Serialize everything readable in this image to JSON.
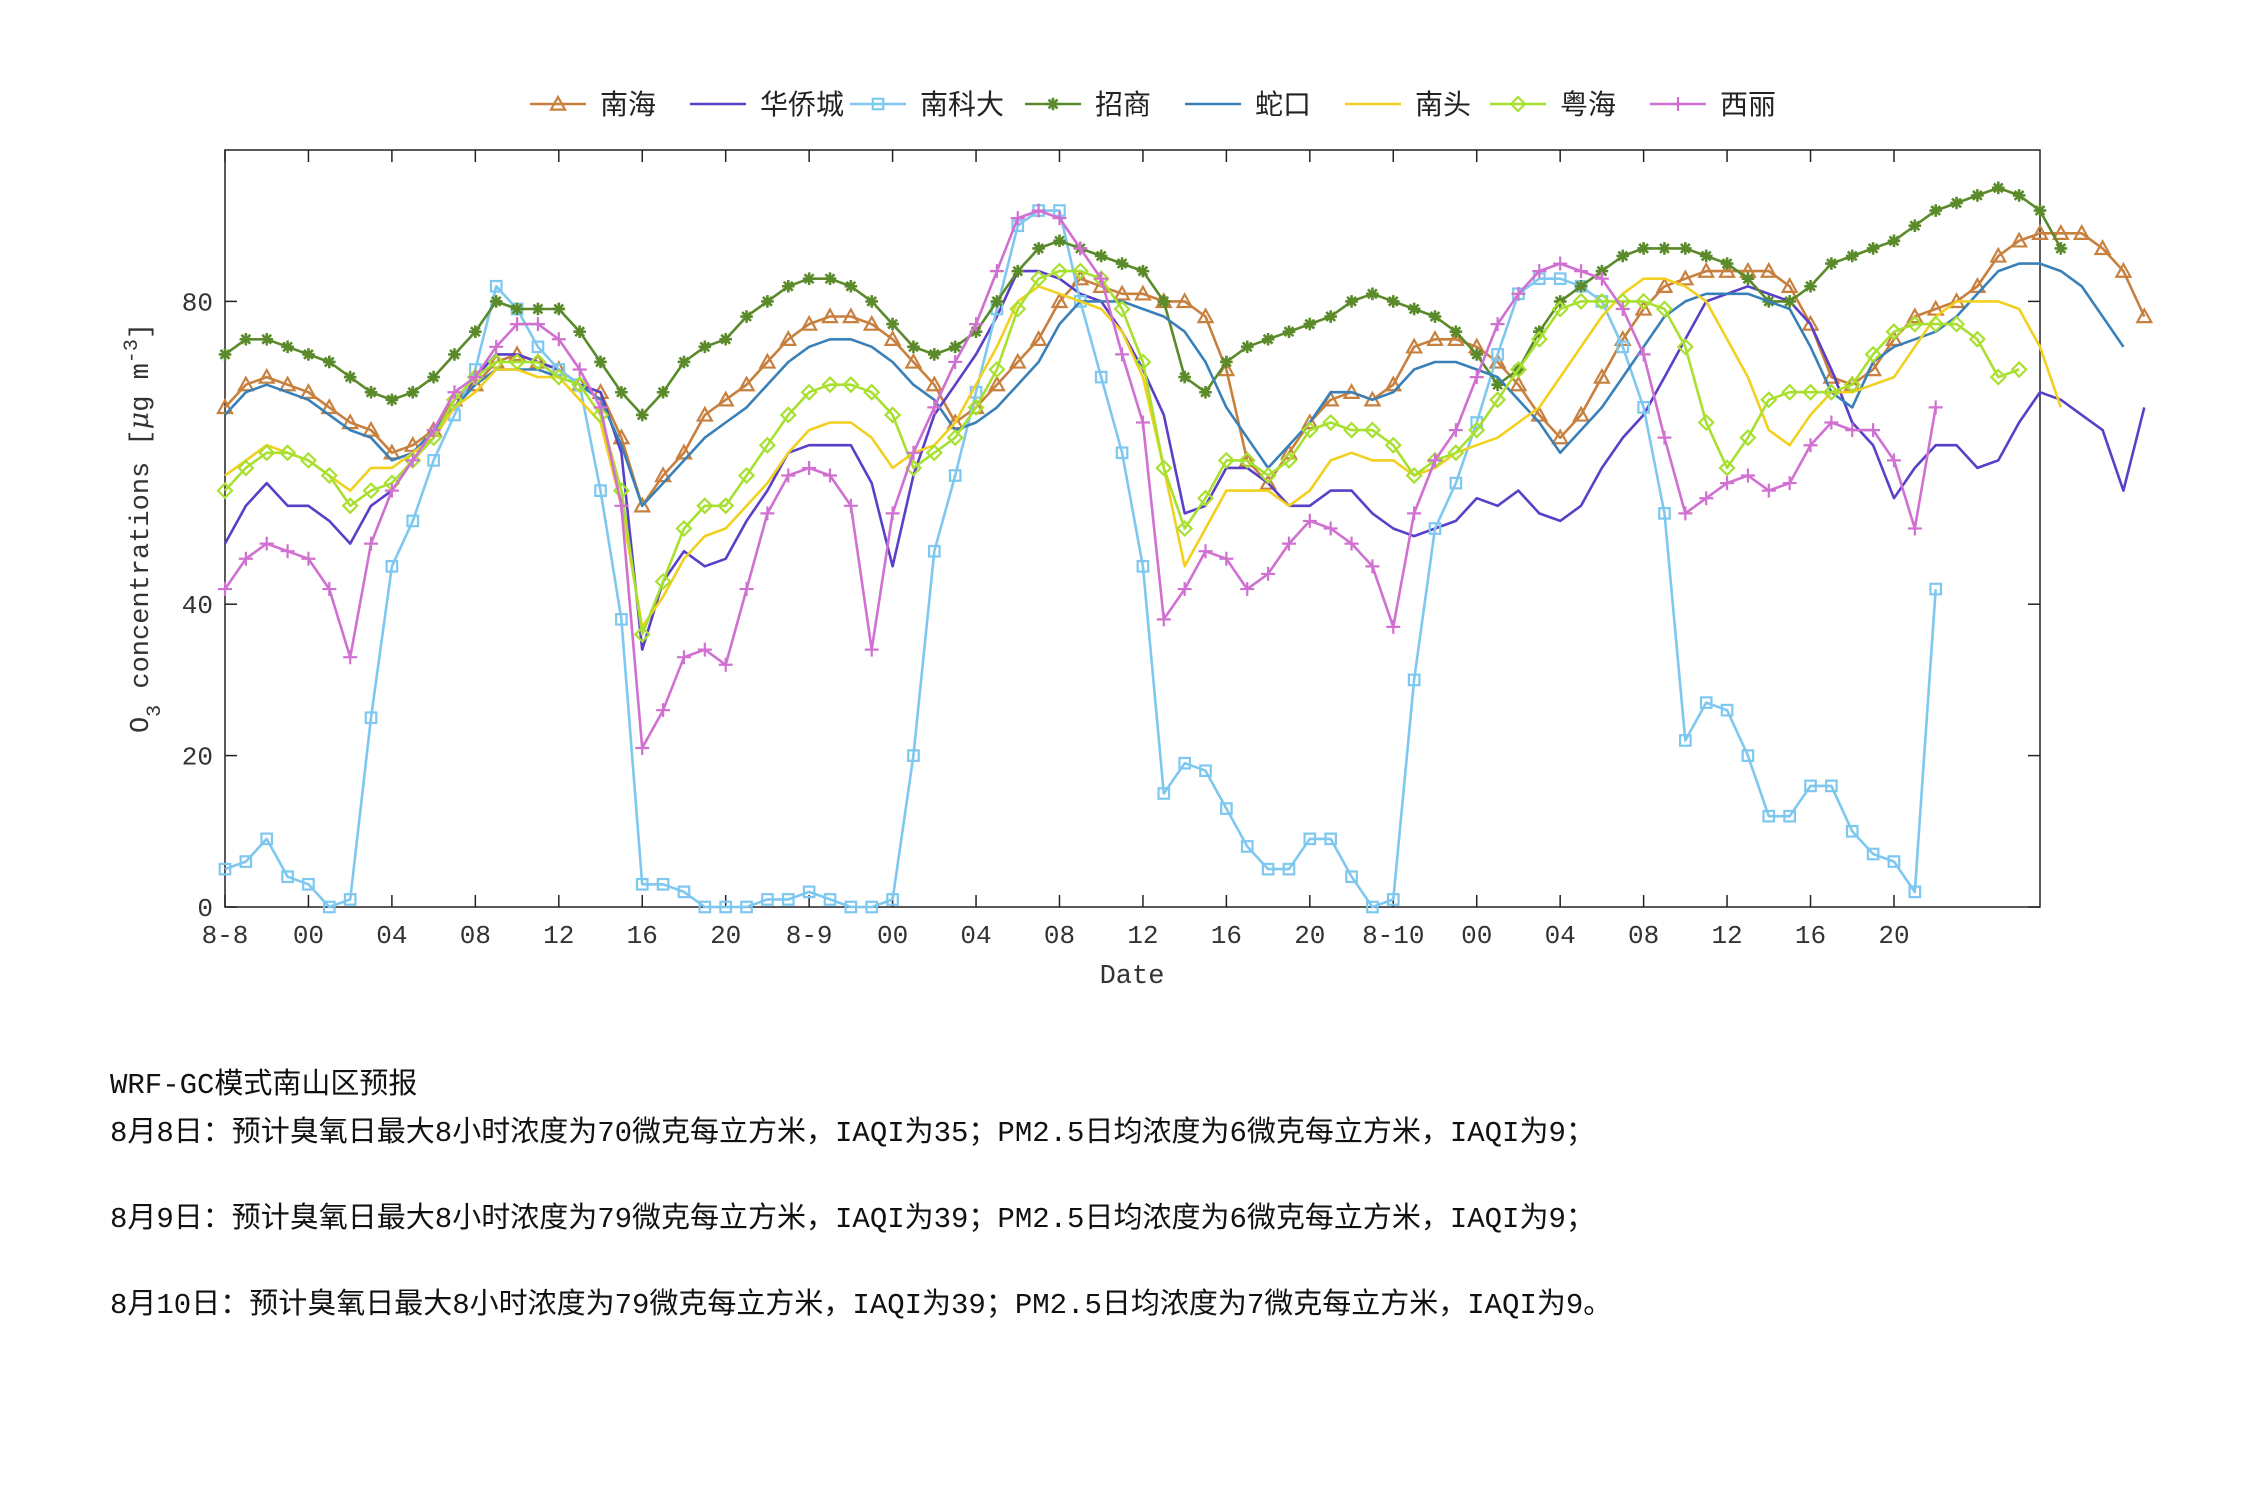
{
  "chart_data": {
    "type": "line",
    "ylabel_main": "O",
    "ylabel_sub": "3",
    "ylabel_rest": " concentrations [",
    "ylabel_mu": "μ",
    "ylabel_unit": "g m",
    "ylabel_exp": "-3",
    "ylabel_close": "]",
    "xlabel": "Date",
    "ylim": [
      0,
      100
    ],
    "y_ticks": [
      0,
      20,
      40,
      80
    ],
    "x_ticks": [
      {
        "x": 0,
        "label": "8-8"
      },
      {
        "x": 4,
        "label": "00"
      },
      {
        "x": 8,
        "label": "04"
      },
      {
        "x": 12,
        "label": "08"
      },
      {
        "x": 16,
        "label": "12"
      },
      {
        "x": 20,
        "label": "16"
      },
      {
        "x": 24,
        "label": "20"
      },
      {
        "x": 28,
        "label": "8-9"
      },
      {
        "x": 32,
        "label": "00"
      },
      {
        "x": 36,
        "label": "04"
      },
      {
        "x": 40,
        "label": "08"
      },
      {
        "x": 44,
        "label": "12"
      },
      {
        "x": 48,
        "label": "16"
      },
      {
        "x": 52,
        "label": "20"
      },
      {
        "x": 56,
        "label": "8-10"
      },
      {
        "x": 60,
        "label": "00"
      },
      {
        "x": 64,
        "label": "04"
      },
      {
        "x": 68,
        "label": "08"
      },
      {
        "x": 72,
        "label": "12"
      },
      {
        "x": 76,
        "label": "16"
      },
      {
        "x": 80,
        "label": "20"
      }
    ],
    "x_range": [
      0,
      87
    ],
    "legend_position": "top",
    "series": [
      {
        "name": "南海",
        "color": "#c8803f",
        "marker": "triangle",
        "values": [
          66,
          69,
          70,
          69,
          68,
          66,
          64,
          63,
          60,
          61,
          63,
          67,
          69,
          72,
          73,
          72,
          71,
          69,
          68,
          62,
          53,
          57,
          60,
          65,
          67,
          69,
          72,
          75,
          77,
          78,
          78,
          77,
          75,
          72,
          69,
          64,
          66,
          69,
          72,
          75,
          80,
          83,
          82,
          81,
          81,
          80,
          80,
          78,
          71,
          59,
          56,
          60,
          64,
          67,
          68,
          67,
          69,
          74,
          75,
          75,
          74,
          72,
          69,
          65,
          62,
          65,
          70,
          75,
          79,
          82,
          83,
          84,
          84,
          84,
          84,
          82,
          77,
          70,
          69,
          71,
          75,
          78,
          79,
          80,
          82,
          86,
          88,
          89,
          89,
          89,
          87,
          84,
          78
        ]
      },
      {
        "name": "华侨城",
        "color": "#5a3fc8",
        "marker": "none",
        "values": [
          48,
          53,
          56,
          53,
          53,
          51,
          48,
          53,
          55,
          59,
          62,
          66,
          70,
          73,
          73,
          72,
          71,
          69,
          68,
          60,
          34,
          43,
          47,
          45,
          46,
          51,
          55,
          60,
          61,
          61,
          61,
          56,
          45,
          57,
          65,
          69,
          73,
          78,
          84,
          84,
          83,
          81,
          80,
          76,
          71,
          65,
          52,
          53,
          58,
          58,
          56,
          53,
          53,
          55,
          55,
          52,
          50,
          49,
          50,
          51,
          54,
          53,
          55,
          52,
          51,
          53,
          58,
          62,
          65,
          70,
          75,
          80,
          81,
          82,
          81,
          80,
          77,
          71,
          64,
          61,
          54,
          58,
          61,
          61,
          58,
          59,
          64,
          68,
          67,
          65,
          63,
          55,
          66
        ]
      },
      {
        "name": "南科大",
        "color": "#7ec8f0",
        "marker": "square",
        "values": [
          5,
          6,
          9,
          4,
          3,
          0,
          1,
          25,
          45,
          51,
          59,
          65,
          71,
          82,
          79,
          74,
          71,
          69,
          55,
          38,
          3,
          3,
          2,
          0,
          0,
          0,
          1,
          1,
          2,
          1,
          0,
          0,
          1,
          20,
          47,
          57,
          68,
          79,
          90,
          92,
          92,
          80,
          70,
          60,
          45,
          15,
          19,
          18,
          13,
          8,
          5,
          5,
          9,
          9,
          4,
          0,
          1,
          30,
          50,
          56,
          64,
          73,
          81,
          83,
          83,
          82,
          80,
          74,
          66,
          52,
          22,
          27,
          26,
          20,
          12,
          12,
          16,
          16,
          10,
          7,
          6,
          2,
          42
        ]
      },
      {
        "name": "招商",
        "color": "#5a8a2a",
        "marker": "star",
        "values": [
          73,
          75,
          75,
          74,
          73,
          72,
          70,
          68,
          67,
          68,
          70,
          73,
          76,
          80,
          79,
          79,
          79,
          76,
          72,
          68,
          65,
          68,
          72,
          74,
          75,
          78,
          80,
          82,
          83,
          83,
          82,
          80,
          77,
          74,
          73,
          74,
          76,
          80,
          84,
          87,
          88,
          87,
          86,
          85,
          84,
          80,
          70,
          68,
          72,
          74,
          75,
          76,
          77,
          78,
          80,
          81,
          80,
          79,
          78,
          76,
          73,
          69,
          71,
          76,
          80,
          82,
          84,
          86,
          87,
          87,
          87,
          86,
          85,
          83,
          80,
          80,
          82,
          85,
          86,
          87,
          88,
          90,
          92,
          93,
          94,
          95,
          94,
          92,
          87
        ]
      },
      {
        "name": "蛇口",
        "color": "#3a80b8",
        "marker": "none",
        "values": [
          65,
          68,
          69,
          68,
          67,
          65,
          63,
          62,
          59,
          60,
          63,
          66,
          69,
          71,
          71,
          71,
          70,
          69,
          67,
          61,
          53,
          56,
          59,
          62,
          64,
          66,
          69,
          72,
          74,
          75,
          75,
          74,
          72,
          69,
          67,
          63,
          64,
          66,
          69,
          72,
          77,
          80,
          80,
          80,
          79,
          78,
          76,
          72,
          66,
          62,
          58,
          61,
          64,
          68,
          68,
          67,
          68,
          71,
          72,
          72,
          71,
          70,
          67,
          64,
          60,
          63,
          66,
          70,
          74,
          78,
          80,
          81,
          81,
          81,
          80,
          79,
          74,
          68,
          66,
          72,
          74,
          75,
          76,
          78,
          81,
          84,
          85,
          85,
          84,
          82,
          78,
          74
        ]
      },
      {
        "name": "南头",
        "color": "#f2d020",
        "marker": "none",
        "values": [
          57,
          59,
          61,
          60,
          59,
          57,
          55,
          58,
          58,
          60,
          62,
          66,
          68,
          71,
          71,
          70,
          70,
          67,
          64,
          53,
          37,
          41,
          46,
          49,
          50,
          53,
          56,
          60,
          63,
          64,
          64,
          62,
          58,
          60,
          61,
          64,
          69,
          74,
          80,
          82,
          81,
          80,
          79,
          76,
          70,
          58,
          45,
          50,
          55,
          55,
          55,
          53,
          55,
          59,
          60,
          59,
          59,
          57,
          58,
          60,
          61,
          62,
          64,
          66,
          70,
          74,
          78,
          81,
          83,
          83,
          82,
          80,
          75,
          70,
          63,
          61,
          65,
          68,
          68,
          69,
          70,
          74,
          78,
          80,
          80,
          80,
          79,
          74,
          66
        ]
      },
      {
        "name": "粤海",
        "color": "#a8e030",
        "marker": "diamond",
        "values": [
          55,
          58,
          60,
          60,
          59,
          57,
          53,
          55,
          56,
          59,
          62,
          67,
          70,
          72,
          72,
          72,
          70,
          69,
          65,
          55,
          36,
          43,
          50,
          53,
          53,
          57,
          61,
          65,
          68,
          69,
          69,
          68,
          65,
          58,
          60,
          62,
          66,
          71,
          79,
          83,
          84,
          84,
          83,
          79,
          72,
          58,
          50,
          54,
          59,
          59,
          57,
          59,
          63,
          64,
          63,
          63,
          61,
          57,
          59,
          60,
          63,
          67,
          71,
          75,
          79,
          80,
          80,
          80,
          80,
          79,
          74,
          64,
          58,
          62,
          67,
          68,
          68,
          68,
          69,
          73,
          76,
          77,
          77,
          77,
          75,
          70,
          71
        ]
      },
      {
        "name": "西丽",
        "color": "#d070d0",
        "marker": "plus",
        "values": [
          42,
          46,
          48,
          47,
          46,
          42,
          33,
          48,
          55,
          59,
          63,
          68,
          70,
          74,
          77,
          77,
          75,
          71,
          66,
          53,
          21,
          26,
          33,
          34,
          32,
          42,
          52,
          57,
          58,
          57,
          53,
          34,
          52,
          60,
          66,
          72,
          77,
          84,
          91,
          92,
          91,
          87,
          83,
          73,
          64,
          38,
          42,
          47,
          46,
          42,
          44,
          48,
          51,
          50,
          48,
          45,
          37,
          52,
          59,
          63,
          70,
          77,
          81,
          84,
          85,
          84,
          83,
          79,
          73,
          62,
          52,
          54,
          56,
          57,
          55,
          56,
          61,
          64,
          63,
          63,
          59,
          50,
          66
        ]
      }
    ]
  },
  "forecast": {
    "title": "WRF-GC模式南山区预报",
    "lines": [
      "8月8日：预计臭氧日最大8小时浓度为70微克每立方米，IAQI为35；PM2.5日均浓度为6微克每立方米，IAQI为9；",
      "8月9日：预计臭氧日最大8小时浓度为79微克每立方米，IAQI为39；PM2.5日均浓度为6微克每立方米，IAQI为9；",
      "8月10日：预计臭氧日最大8小时浓度为79微克每立方米，IAQI为39；PM2.5日均浓度为7微克每立方米，IAQI为9。"
    ]
  }
}
